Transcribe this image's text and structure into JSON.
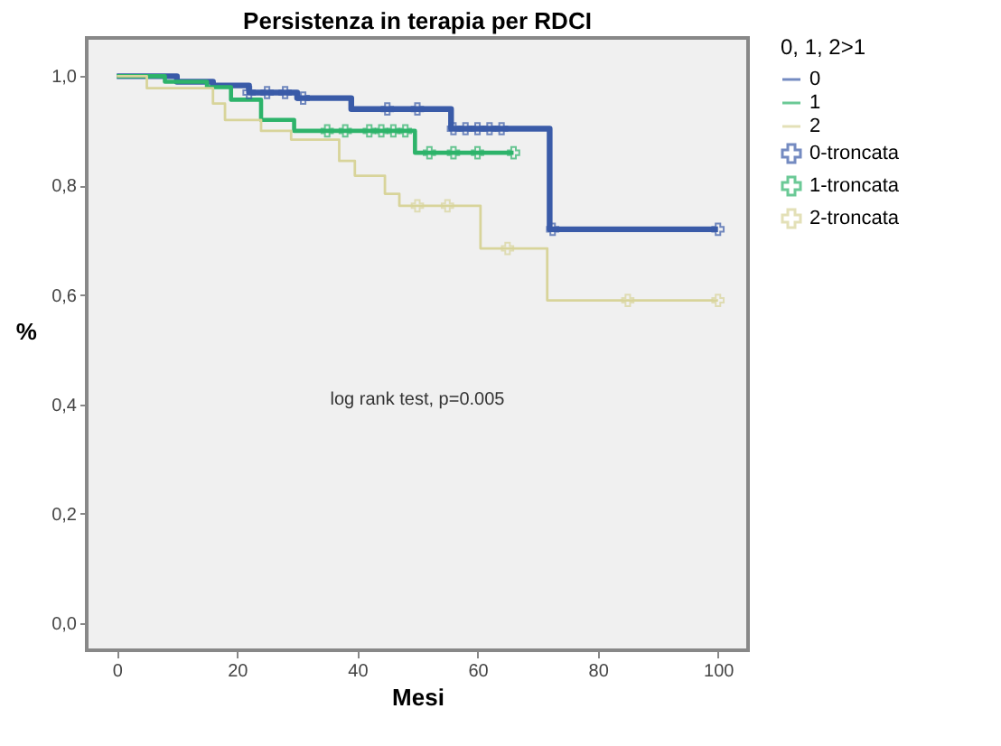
{
  "chart_data": {
    "type": "step",
    "title": "Persistenza in terapia per RDCI",
    "xlabel": "Mesi",
    "ylabel": "%",
    "legend_title": "0, 1, 2>1",
    "legend": "top right",
    "grid": false,
    "xlim": [
      -5,
      105
    ],
    "ylim": [
      -0.05,
      1.07
    ],
    "xticks": [
      0,
      20,
      40,
      60,
      80,
      100
    ],
    "yticks": [
      {
        "value": 0,
        "label": "0,0"
      },
      {
        "value": 0.2,
        "label": "0,2"
      },
      {
        "value": 0.4,
        "label": "0,4"
      },
      {
        "value": 0.6,
        "label": "0,6"
      },
      {
        "value": 0.8,
        "label": "0,8"
      },
      {
        "value": 1,
        "label": "1,0"
      }
    ],
    "annotations": [
      "log rank test, p=0.005"
    ],
    "series": [
      {
        "name": "0",
        "color": "#3a5ba8",
        "marker": "none",
        "x": [
          0,
          10,
          16,
          22,
          30,
          39,
          55.6,
          72,
          100
        ],
        "values": [
          1.0,
          0.99,
          0.983,
          0.97,
          0.96,
          0.94,
          0.904,
          0.72,
          0.72
        ]
      },
      {
        "name": "1",
        "color": "#2db36a",
        "marker": "none",
        "x": [
          0,
          8,
          15,
          19,
          24,
          29.5,
          49.6,
          66
        ],
        "values": [
          1.0,
          0.99,
          0.98,
          0.957,
          0.92,
          0.9,
          0.86,
          0.86
        ]
      },
      {
        "name": "2",
        "color": "#d8d49a",
        "marker": "none",
        "x": [
          0,
          5,
          16,
          18,
          24,
          29,
          37,
          39.6,
          44.6,
          47,
          60.5,
          71.6,
          100
        ],
        "values": [
          1.0,
          0.978,
          0.95,
          0.92,
          0.9,
          0.884,
          0.845,
          0.818,
          0.785,
          0.763,
          0.685,
          0.59,
          0.59
        ]
      },
      {
        "name": "0-troncata",
        "type": "scatter",
        "color": "#3a5ba8",
        "marker": "cross",
        "x": [
          22,
          25,
          28,
          31,
          45,
          50,
          56,
          58,
          60,
          62,
          64,
          72.5,
          100
        ],
        "values": [
          0.97,
          0.97,
          0.97,
          0.96,
          0.94,
          0.94,
          0.904,
          0.904,
          0.904,
          0.904,
          0.904,
          0.72,
          0.72
        ]
      },
      {
        "name": "1-troncata",
        "type": "scatter",
        "color": "#2db36a",
        "marker": "cross",
        "x": [
          35,
          38,
          42,
          44,
          46,
          48,
          52,
          56,
          60,
          66
        ],
        "values": [
          0.9,
          0.9,
          0.9,
          0.9,
          0.9,
          0.9,
          0.86,
          0.86,
          0.86,
          0.86
        ]
      },
      {
        "name": "2-troncata",
        "type": "scatter",
        "color": "#d8d49a",
        "marker": "cross",
        "x": [
          50,
          55,
          65,
          85,
          100
        ],
        "values": [
          0.763,
          0.763,
          0.685,
          0.59,
          0.59
        ]
      }
    ]
  }
}
